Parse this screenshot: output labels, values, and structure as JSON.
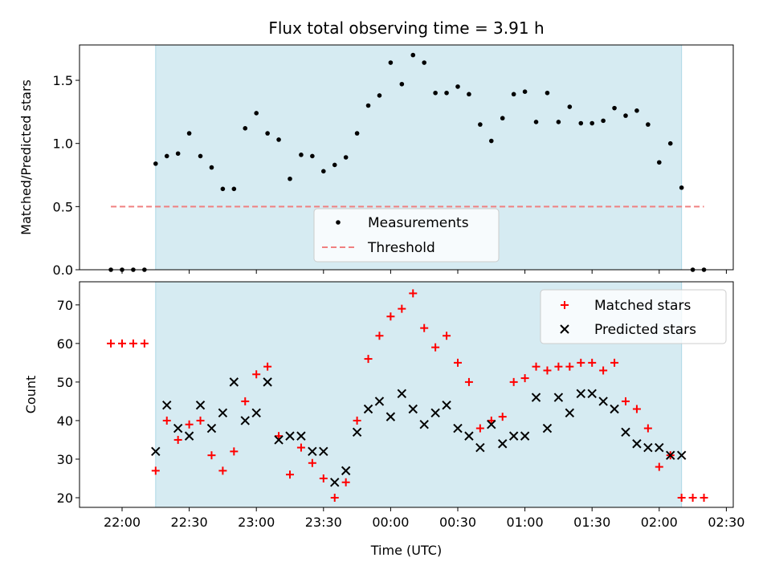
{
  "chart_data": [
    {
      "type": "scatter",
      "title": "Flux total observing time = 3.91 h",
      "ylabel": "Matched/Predicted stars",
      "xlabel": "",
      "ylim": [
        0,
        1.78
      ],
      "yticks": [
        "0.0",
        "0.5",
        "1.0",
        "1.5"
      ],
      "ytick_values": [
        0,
        0.5,
        1.0,
        1.5
      ],
      "shaded_region": {
        "start": "22:15",
        "end": "02:10",
        "color": "#add8e6"
      },
      "legend": {
        "position": "lower-center",
        "entries": [
          "Measurements",
          "Threshold"
        ]
      },
      "series": [
        {
          "name": "Measurements",
          "marker": "dot",
          "color": "#000000",
          "x": [
            "21:55",
            "22:00",
            "22:05",
            "22:10",
            "22:15",
            "22:20",
            "22:25",
            "22:30",
            "22:35",
            "22:40",
            "22:45",
            "22:50",
            "22:55",
            "23:00",
            "23:05",
            "23:10",
            "23:15",
            "23:20",
            "23:25",
            "23:30",
            "23:35",
            "23:40",
            "23:45",
            "23:50",
            "23:55",
            "00:00",
            "00:05",
            "00:10",
            "00:15",
            "00:20",
            "00:25",
            "00:30",
            "00:35",
            "00:40",
            "00:45",
            "00:50",
            "00:55",
            "01:00",
            "01:05",
            "01:10",
            "01:15",
            "01:20",
            "01:25",
            "01:30",
            "01:35",
            "01:40",
            "01:45",
            "01:50",
            "01:55",
            "02:00",
            "02:05",
            "02:10",
            "02:15",
            "02:20"
          ],
          "y": [
            0,
            0,
            0,
            0,
            0.84,
            0.9,
            0.92,
            1.08,
            0.9,
            0.81,
            0.64,
            0.64,
            1.12,
            1.24,
            1.08,
            1.03,
            0.72,
            0.91,
            0.9,
            0.78,
            0.83,
            0.89,
            1.08,
            1.3,
            1.38,
            1.64,
            1.47,
            1.7,
            1.64,
            1.4,
            1.4,
            1.45,
            1.39,
            1.15,
            1.02,
            1.2,
            1.39,
            1.41,
            1.17,
            1.4,
            1.17,
            1.29,
            1.16,
            1.16,
            1.18,
            1.28,
            1.22,
            1.26,
            1.15,
            0.85,
            1.0,
            0.65,
            0,
            0
          ]
        },
        {
          "name": "Threshold",
          "line": "dashed",
          "color": "#f08080",
          "x": [
            "21:55",
            "02:20"
          ],
          "y": [
            0.5,
            0.5
          ]
        }
      ]
    },
    {
      "type": "scatter",
      "title": "",
      "ylabel": "Count",
      "xlabel": "Time (UTC)",
      "ylim": [
        17.5,
        76
      ],
      "yticks": [
        "20",
        "30",
        "40",
        "50",
        "60",
        "70"
      ],
      "ytick_values": [
        20,
        30,
        40,
        50,
        60,
        70
      ],
      "xticks": [
        "22:00",
        "22:30",
        "23:00",
        "23:30",
        "00:00",
        "00:30",
        "01:00",
        "01:30",
        "02:00",
        "02:30"
      ],
      "shaded_region": {
        "start": "22:15",
        "end": "02:10",
        "color": "#add8e6"
      },
      "legend": {
        "position": "top-right",
        "entries": [
          "Matched stars",
          "Predicted stars"
        ]
      },
      "series": [
        {
          "name": "Matched stars",
          "marker": "plus",
          "color": "#ff0000",
          "x": [
            "21:55",
            "22:00",
            "22:05",
            "22:10",
            "22:15",
            "22:20",
            "22:25",
            "22:30",
            "22:35",
            "22:40",
            "22:45",
            "22:50",
            "22:55",
            "23:00",
            "23:05",
            "23:10",
            "23:15",
            "23:20",
            "23:25",
            "23:30",
            "23:35",
            "23:40",
            "23:45",
            "23:50",
            "23:55",
            "00:00",
            "00:05",
            "00:10",
            "00:15",
            "00:20",
            "00:25",
            "00:30",
            "00:35",
            "00:40",
            "00:45",
            "00:50",
            "00:55",
            "01:00",
            "01:05",
            "01:10",
            "01:15",
            "01:20",
            "01:25",
            "01:30",
            "01:35",
            "01:40",
            "01:45",
            "01:50",
            "01:55",
            "02:00",
            "02:05",
            "02:10",
            "02:15",
            "02:20"
          ],
          "y": [
            60,
            60,
            60,
            60,
            27,
            40,
            35,
            39,
            40,
            31,
            27,
            32,
            45,
            52,
            54,
            36,
            26,
            33,
            29,
            25,
            20,
            24,
            40,
            56,
            62,
            67,
            69,
            73,
            64,
            59,
            62,
            55,
            50,
            38,
            40,
            41,
            50,
            51,
            54,
            53,
            54,
            54,
            55,
            55,
            53,
            55,
            45,
            43,
            38,
            28,
            31,
            20,
            20,
            20
          ]
        },
        {
          "name": "Predicted stars",
          "marker": "x",
          "color": "#000000",
          "x": [
            "22:15",
            "22:20",
            "22:25",
            "22:30",
            "22:35",
            "22:40",
            "22:45",
            "22:50",
            "22:55",
            "23:00",
            "23:05",
            "23:10",
            "23:15",
            "23:20",
            "23:25",
            "23:30",
            "23:35",
            "23:40",
            "23:45",
            "23:50",
            "23:55",
            "00:00",
            "00:05",
            "00:10",
            "00:15",
            "00:20",
            "00:25",
            "00:30",
            "00:35",
            "00:40",
            "00:45",
            "00:50",
            "00:55",
            "01:00",
            "01:05",
            "01:10",
            "01:15",
            "01:20",
            "01:25",
            "01:30",
            "01:35",
            "01:40",
            "01:45",
            "01:50",
            "01:55",
            "02:00",
            "02:05",
            "02:10"
          ],
          "y": [
            32,
            44,
            38,
            36,
            44,
            38,
            42,
            50,
            40,
            42,
            50,
            35,
            36,
            36,
            32,
            32,
            24,
            27,
            37,
            43,
            45,
            41,
            47,
            43,
            39,
            42,
            44,
            38,
            36,
            33,
            39,
            34,
            36,
            36,
            46,
            38,
            46,
            42,
            47,
            47,
            45,
            43,
            37,
            34,
            33,
            33,
            31,
            31
          ]
        }
      ]
    }
  ]
}
